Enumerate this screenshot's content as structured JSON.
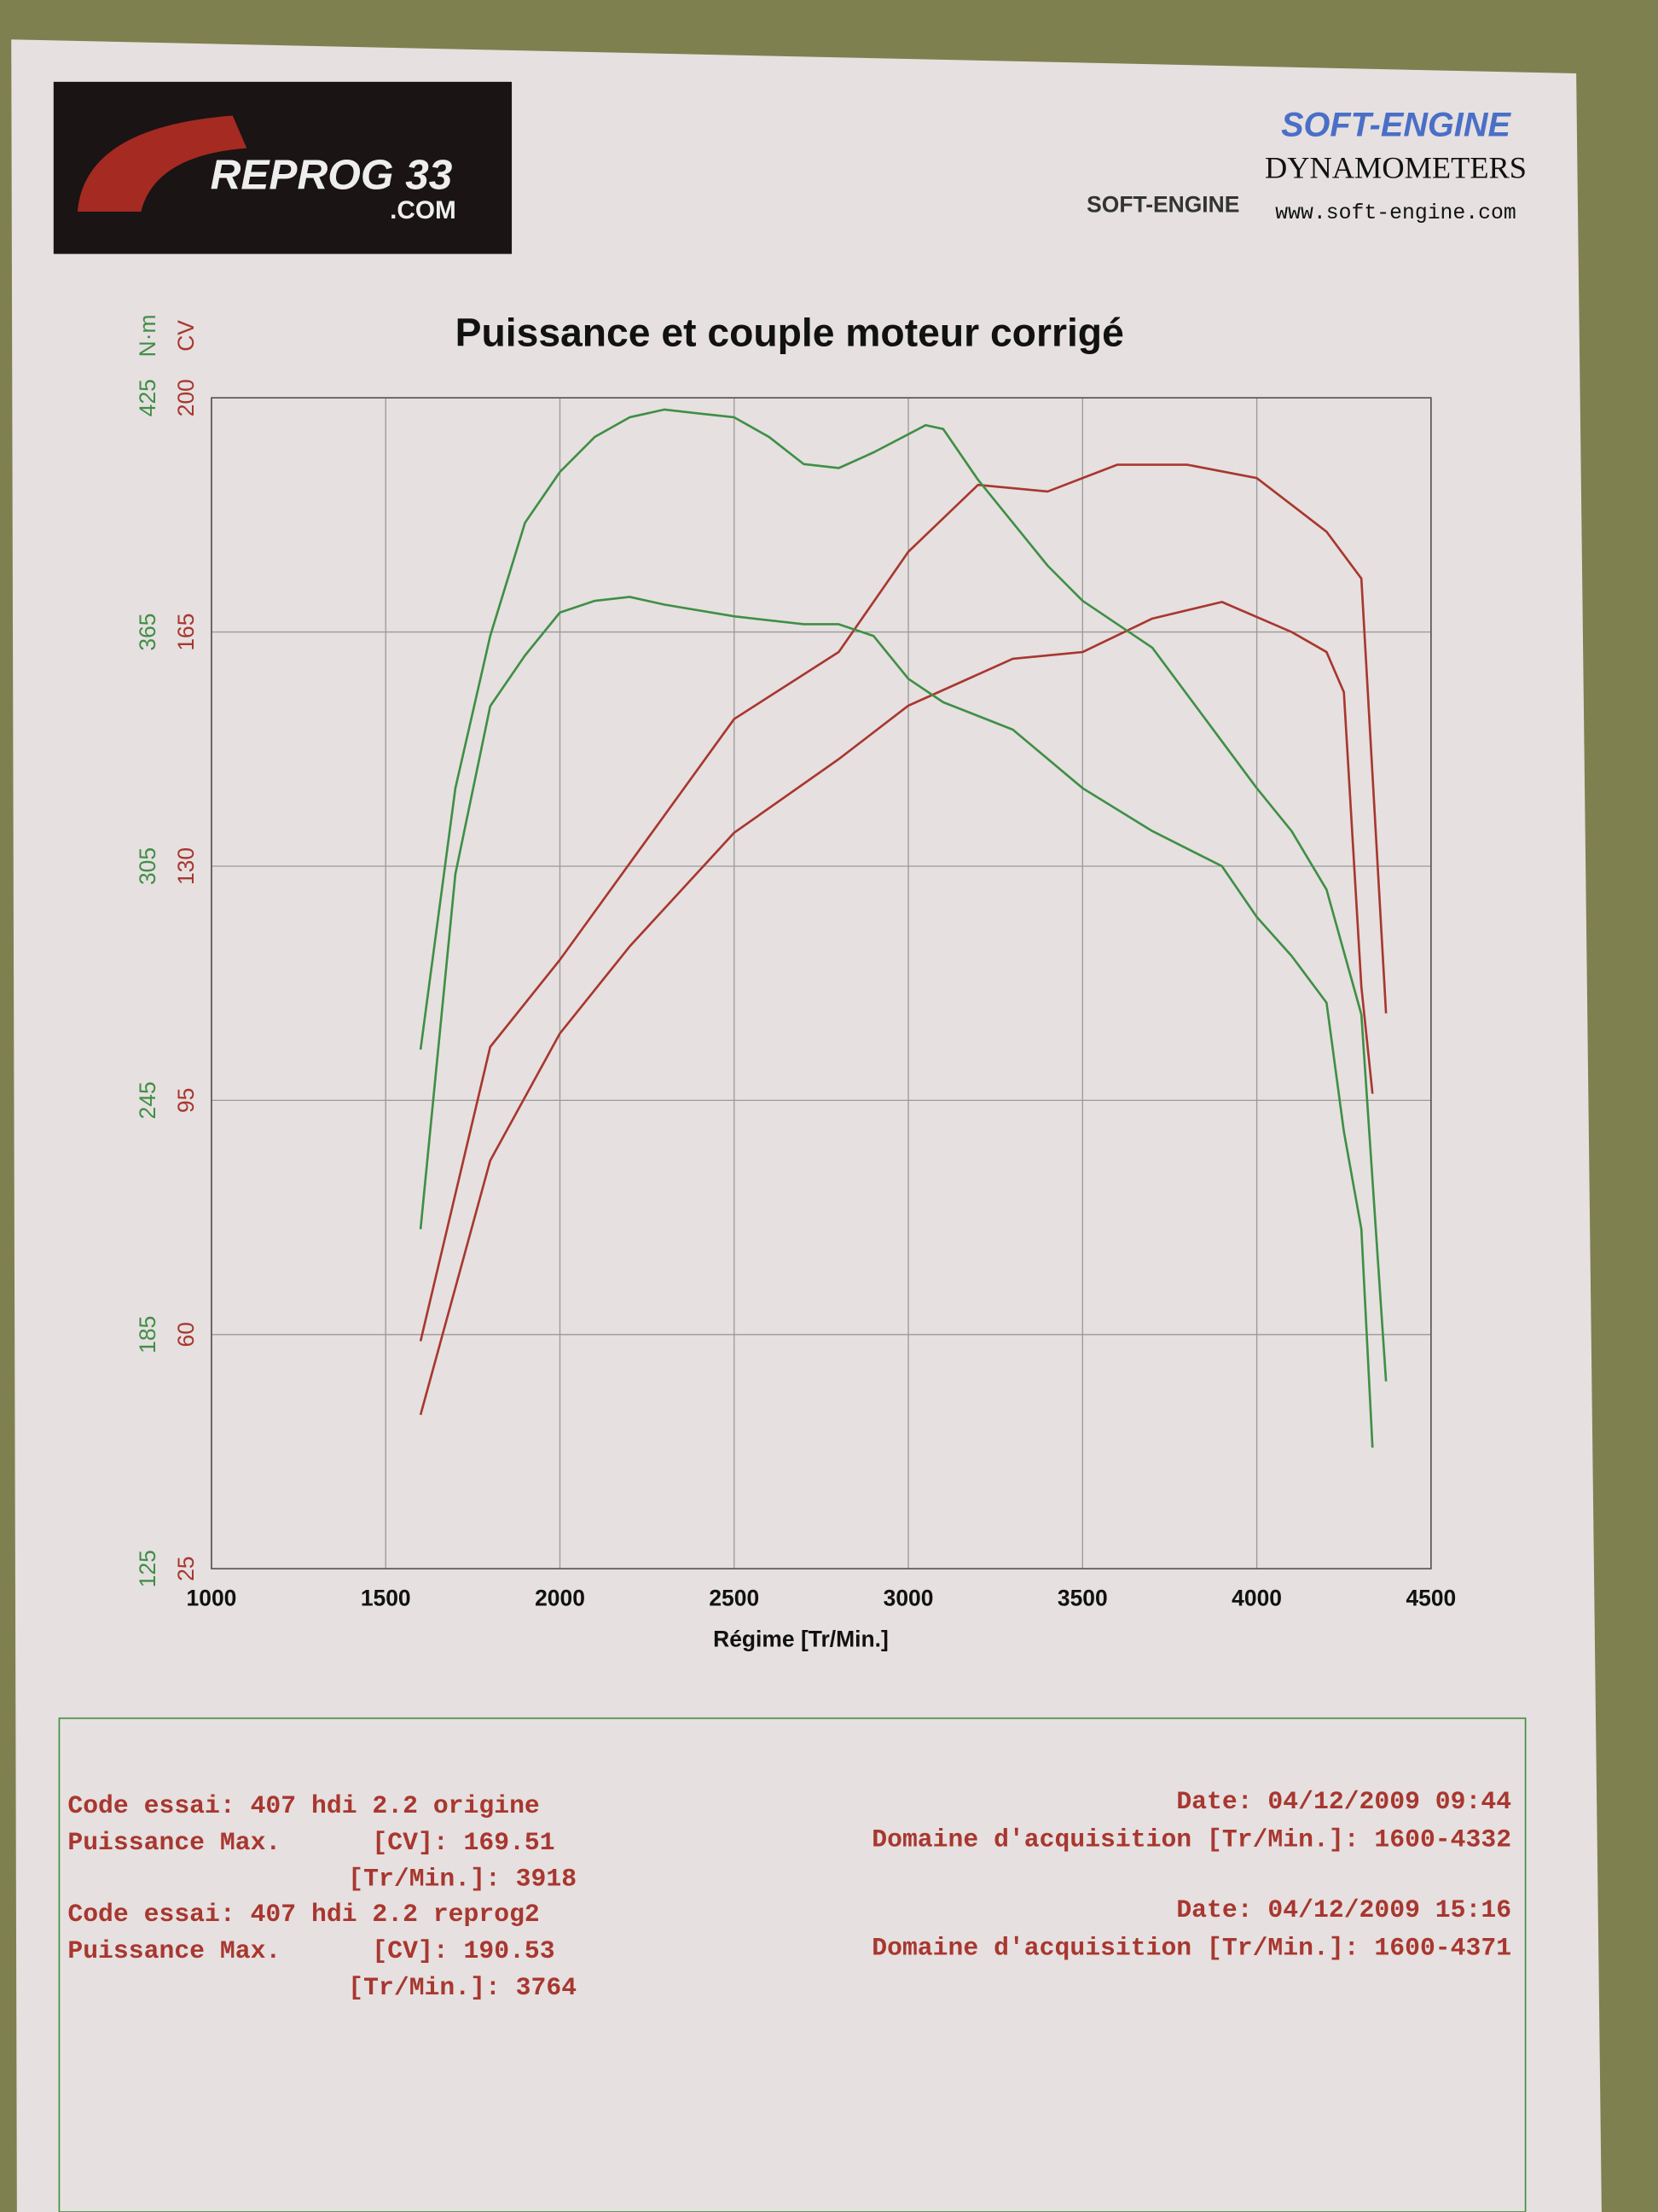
{
  "header": {
    "left_logo_top": "REPROG 33",
    "left_logo_bottom": ".COM",
    "brand": "SOFT-ENGINE",
    "brand_sub": "DYNAMOMETERS",
    "website": "www.soft-engine.com",
    "logo_text": "SOFT-ENGINE"
  },
  "chart_data": {
    "type": "line",
    "title": "Puissance et couple moteur corrigé",
    "x_label": "Régime [Tr/Min.]",
    "y_label": "CV",
    "y2_label": "N·m",
    "xlim": [
      1000,
      4500
    ],
    "xticks": [
      1000,
      1500,
      2000,
      2500,
      3000,
      3500,
      4000,
      4500
    ],
    "ylim": [
      25,
      200
    ],
    "yticks": [
      25,
      60,
      95,
      130,
      165,
      200
    ],
    "y2lim": [
      125,
      425
    ],
    "y2ticks": [
      125,
      185,
      245,
      305,
      365,
      425
    ],
    "y_color": "#a8372f",
    "y2_color": "#3f8f45",
    "grid": true,
    "series": [
      {
        "color": "#a8372f",
        "axis": "y",
        "x": [
          1600,
          1800,
          2000,
          2200,
          2500,
          2800,
          3000,
          3300,
          3500,
          3700,
          3900,
          4100,
          4200,
          4250,
          4300,
          4332
        ],
        "values": [
          48,
          86,
          105,
          118,
          135,
          146,
          154,
          161,
          162,
          167,
          169.5,
          165,
          162,
          156,
          112,
          96
        ]
      },
      {
        "color": "#a8372f",
        "axis": "y",
        "x": [
          1600,
          1800,
          2000,
          2500,
          2800,
          3000,
          3200,
          3400,
          3600,
          3800,
          4000,
          4200,
          4300,
          4371
        ],
        "values": [
          59,
          103,
          116,
          152,
          162,
          177,
          187,
          186,
          190,
          190,
          188,
          180,
          173,
          108
        ]
      },
      {
        "color": "#3f8f45",
        "axis": "y2",
        "x": [
          1600,
          1700,
          1800,
          1900,
          2000,
          2100,
          2200,
          2300,
          2500,
          2700,
          2800,
          2900,
          3000,
          3100,
          3300,
          3500,
          3700,
          3900,
          4000,
          4100,
          4200,
          4250,
          4300,
          4332
        ],
        "values": [
          212,
          303,
          346,
          359,
          370,
          373,
          374,
          372,
          369,
          367,
          367,
          364,
          353,
          347,
          340,
          325,
          314,
          305,
          292,
          282,
          270,
          237,
          212,
          156
        ]
      },
      {
        "color": "#3f8f45",
        "axis": "y2",
        "x": [
          1600,
          1700,
          1800,
          1900,
          2000,
          2100,
          2200,
          2300,
          2400,
          2500,
          2600,
          2700,
          2800,
          2900,
          3050,
          3100,
          3200,
          3400,
          3500,
          3700,
          3900,
          4000,
          4100,
          4200,
          4300,
          4371
        ],
        "values": [
          258,
          325,
          364,
          393,
          406,
          415,
          420,
          422,
          421,
          420,
          415,
          408,
          407,
          411,
          418,
          417,
          404,
          382,
          373,
          361,
          337,
          325,
          314,
          299,
          267,
          173
        ]
      }
    ]
  },
  "report": {
    "tests": [
      {
        "code": "Code essai: 407 hdi 2.2 origine",
        "power": "Puissance Max.      [CV]: 169.51",
        "rpm": "[Tr/Min.]: 3918",
        "date": "Date: 04/12/2009 09:44",
        "range": "Domaine d'acquisition [Tr/Min.]: 1600-4332"
      },
      {
        "code": "Code essai: 407 hdi 2.2 reprog2",
        "power": "Puissance Max.      [CV]: 190.53",
        "rpm": "[Tr/Min.]: 3764",
        "date": "Date: 04/12/2009 15:16",
        "range": "Domaine d'acquisition [Tr/Min.]: 1600-4371"
      }
    ]
  }
}
